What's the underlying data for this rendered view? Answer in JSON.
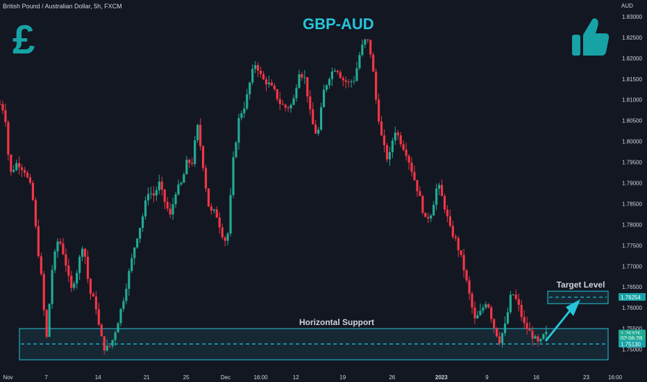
{
  "header": {
    "symbol": "British Pound / Australian Dollar, 5h, FXCM",
    "currency_unit": "AUD",
    "title": "GBP-AUD"
  },
  "icons": {
    "left": "pound-sign-icon",
    "right": "thumbs-up-icon",
    "left_glyph": "£",
    "accent_color": "#17a2a6"
  },
  "chart_data": {
    "type": "candlestick",
    "title": "GBP-AUD",
    "ylabel": "AUD",
    "ylim": [
      1.7445,
      1.834
    ],
    "y_ticks": [
      "1.83000",
      "1.82500",
      "1.82000",
      "1.81500",
      "1.81000",
      "1.80500",
      "1.80000",
      "1.79500",
      "1.79000",
      "1.78500",
      "1.78000",
      "1.77500",
      "1.77000",
      "1.76500",
      "1.76000",
      "1.75500",
      "1.75000"
    ],
    "x_ticks": [
      {
        "label": "Nov",
        "t": 0.005
      },
      {
        "label": "7",
        "t": 0.075
      },
      {
        "label": "14",
        "t": 0.159
      },
      {
        "label": "21",
        "t": 0.238
      },
      {
        "label": "25",
        "t": 0.302
      },
      {
        "label": "Dec",
        "t": 0.366
      },
      {
        "label": "16:00",
        "t": 0.423
      },
      {
        "label": "12",
        "t": 0.48
      },
      {
        "label": "19",
        "t": 0.556
      },
      {
        "label": "26",
        "t": 0.636
      },
      {
        "label": "2023",
        "t": 0.716
      },
      {
        "label": "9",
        "t": 0.79
      },
      {
        "label": "16",
        "t": 0.87
      },
      {
        "label": "23",
        "t": 0.951
      },
      {
        "label": "16:00",
        "t": 1.0
      }
    ],
    "path": [
      [
        0.0,
        1.809
      ],
      [
        0.008,
        1.807
      ],
      [
        0.016,
        1.792
      ],
      [
        0.028,
        1.795
      ],
      [
        0.04,
        1.793
      ],
      [
        0.052,
        1.788
      ],
      [
        0.06,
        1.776
      ],
      [
        0.068,
        1.766
      ],
      [
        0.075,
        1.7515
      ],
      [
        0.085,
        1.77
      ],
      [
        0.095,
        1.777
      ],
      [
        0.105,
        1.772
      ],
      [
        0.115,
        1.764
      ],
      [
        0.125,
        1.769
      ],
      [
        0.135,
        1.776
      ],
      [
        0.145,
        1.764
      ],
      [
        0.155,
        1.761
      ],
      [
        0.162,
        1.754
      ],
      [
        0.17,
        1.75
      ],
      [
        0.18,
        1.751
      ],
      [
        0.19,
        1.756
      ],
      [
        0.2,
        1.762
      ],
      [
        0.21,
        1.769
      ],
      [
        0.22,
        1.776
      ],
      [
        0.23,
        1.781
      ],
      [
        0.24,
        1.788
      ],
      [
        0.25,
        1.787
      ],
      [
        0.258,
        1.79
      ],
      [
        0.266,
        1.786
      ],
      [
        0.276,
        1.782
      ],
      [
        0.285,
        1.788
      ],
      [
        0.295,
        1.79
      ],
      [
        0.303,
        1.795
      ],
      [
        0.312,
        1.795
      ],
      [
        0.32,
        1.804
      ],
      [
        0.328,
        1.796
      ],
      [
        0.334,
        1.789
      ],
      [
        0.34,
        1.783
      ],
      [
        0.35,
        1.783
      ],
      [
        0.356,
        1.78
      ],
      [
        0.364,
        1.776
      ],
      [
        0.37,
        1.778
      ],
      [
        0.378,
        1.795
      ],
      [
        0.388,
        1.806
      ],
      [
        0.398,
        1.809
      ],
      [
        0.408,
        1.816
      ],
      [
        0.415,
        1.819
      ],
      [
        0.425,
        1.815
      ],
      [
        0.435,
        1.814
      ],
      [
        0.445,
        1.812
      ],
      [
        0.455,
        1.809
      ],
      [
        0.465,
        1.808
      ],
      [
        0.475,
        1.809
      ],
      [
        0.485,
        1.817
      ],
      [
        0.495,
        1.815
      ],
      [
        0.505,
        1.805
      ],
      [
        0.515,
        1.801
      ],
      [
        0.525,
        1.812
      ],
      [
        0.535,
        1.816
      ],
      [
        0.545,
        1.818
      ],
      [
        0.555,
        1.815
      ],
      [
        0.565,
        1.814
      ],
      [
        0.575,
        1.815
      ],
      [
        0.585,
        1.822
      ],
      [
        0.595,
        1.825
      ],
      [
        0.603,
        1.82
      ],
      [
        0.61,
        1.81
      ],
      [
        0.62,
        1.8
      ],
      [
        0.63,
        1.795
      ],
      [
        0.64,
        1.803
      ],
      [
        0.65,
        1.8
      ],
      [
        0.66,
        1.797
      ],
      [
        0.67,
        1.792
      ],
      [
        0.68,
        1.787
      ],
      [
        0.69,
        1.781
      ],
      [
        0.7,
        1.783
      ],
      [
        0.71,
        1.79
      ],
      [
        0.72,
        1.785
      ],
      [
        0.73,
        1.779
      ],
      [
        0.74,
        1.776
      ],
      [
        0.75,
        1.771
      ],
      [
        0.76,
        1.764
      ],
      [
        0.77,
        1.757
      ],
      [
        0.78,
        1.759
      ],
      [
        0.79,
        1.762
      ],
      [
        0.8,
        1.756
      ],
      [
        0.81,
        1.752
      ],
      [
        0.82,
        1.756
      ],
      [
        0.83,
        1.764
      ],
      [
        0.84,
        1.761
      ],
      [
        0.85,
        1.756
      ],
      [
        0.86,
        1.754
      ],
      [
        0.87,
        1.752
      ],
      [
        0.875,
        1.751
      ],
      [
        0.88,
        1.753
      ],
      [
        0.886,
        1.7537
      ]
    ],
    "annotations": [
      {
        "text": "Horizontal Support",
        "type": "zone",
        "y_from": 1.7475,
        "y_to": 1.755,
        "line": 1.7513
      },
      {
        "text": "Target Level",
        "type": "zone",
        "y_from": 1.761,
        "y_to": 1.764,
        "line": 1.76254
      }
    ],
    "price_labels": [
      {
        "text": "1.76254",
        "y": 1.76254,
        "color": "#17a2a6",
        "text_color": "#ffffff"
      },
      {
        "text": "1.75375",
        "y": 1.75375,
        "color": "#22ab94",
        "text_color": "#ffffff"
      },
      {
        "text": "02:06:28",
        "y": 1.7527,
        "color": "#22ab94",
        "text_color": "#ffffff"
      },
      {
        "text": "1.75130",
        "y": 1.7513,
        "color": "#17a2a6",
        "text_color": "#ffffff"
      }
    ],
    "colors": {
      "up": "#22ab94",
      "down": "#f23645",
      "zone": "#26c6da",
      "background": "#131722"
    },
    "grid": false
  }
}
